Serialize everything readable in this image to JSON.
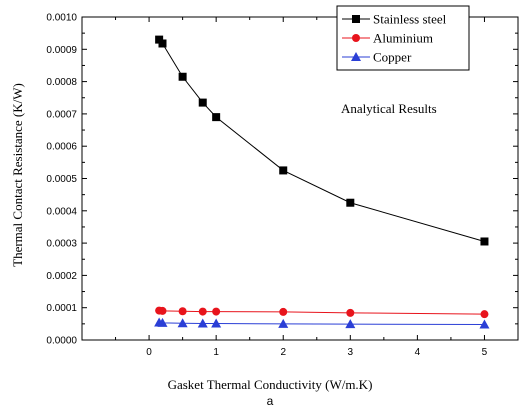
{
  "chart_data": {
    "type": "line",
    "xlabel": "Gasket Thermal Conductivity (W/m.K)",
    "ylabel": "Thermal Contact Resistance (K/W)",
    "xlim": [
      -1,
      5.5
    ],
    "ylim": [
      0,
      0.001
    ],
    "x_ticks": [
      0,
      1,
      2,
      3,
      4,
      5
    ],
    "x_tick_labels": [
      "0",
      "1",
      "2",
      "3",
      "4",
      "5"
    ],
    "y_ticks": [
      0,
      0.0001,
      0.0002,
      0.0003,
      0.0004,
      0.0005,
      0.0006,
      0.0007,
      0.0008,
      0.0009,
      0.001
    ],
    "y_tick_labels": [
      "0.0000",
      "0.0001",
      "0.0002",
      "0.0003",
      "0.0004",
      "0.0005",
      "0.0006",
      "0.0007",
      "0.0008",
      "0.0009",
      "0.0010"
    ],
    "grid": false,
    "legend_position": "top-right",
    "annotation": "Analytical Results",
    "caption": "a",
    "series": [
      {
        "name": "Stainless steel",
        "marker": "square",
        "color": "#000000",
        "x": [
          0.15,
          0.2,
          0.5,
          0.8,
          1,
          2,
          3,
          5
        ],
        "y": [
          0.00093,
          0.000918,
          0.000815,
          0.000735,
          0.00069,
          0.000525,
          0.000425,
          0.000305
        ]
      },
      {
        "name": "Aluminium",
        "marker": "circle",
        "color": "#e8141c",
        "x": [
          0.15,
          0.2,
          0.5,
          0.8,
          1,
          2,
          3,
          5
        ],
        "y": [
          9.1e-05,
          9e-05,
          8.9e-05,
          8.8e-05,
          8.8e-05,
          8.7e-05,
          8.4e-05,
          8e-05
        ]
      },
      {
        "name": "Copper",
        "marker": "triangle",
        "color": "#2b3fd6",
        "x": [
          0.15,
          0.2,
          0.5,
          0.8,
          1,
          2,
          3,
          5
        ],
        "y": [
          5.4e-05,
          5.3e-05,
          5.2e-05,
          5.1e-05,
          5.1e-05,
          5e-05,
          4.9e-05,
          4.8e-05
        ]
      }
    ]
  }
}
